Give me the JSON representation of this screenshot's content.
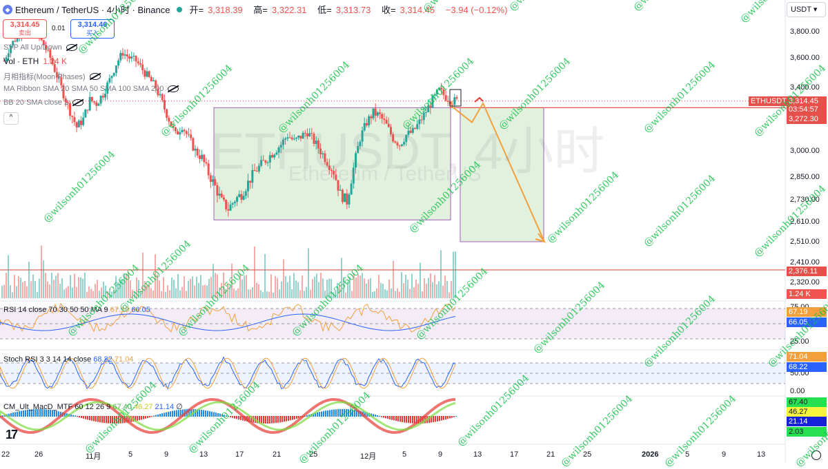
{
  "header": {
    "symbol": "Ethereum / TetherUS · 4小时 · Binance",
    "open_label": "开=",
    "open": "3,318.39",
    "high_label": "高=",
    "high": "3,322.31",
    "low_label": "低=",
    "low": "3,313.73",
    "close_label": "收=",
    "close": "3,314.45",
    "change": "−3.94 (−0.12%)"
  },
  "trade": {
    "sell_price": "3,314.45",
    "sell_label": "卖出",
    "spread": "0.01",
    "buy_price": "3,314.46",
    "buy_label": "买入"
  },
  "indicators": {
    "svp": "SVP All Up/Down",
    "vol": "Vol · ETH",
    "vol_value": "1.24 K",
    "moon": "月相指标(Moon Phases)",
    "ribbon": "MA Ribbon SMA 20 SMA 50 SMA 100 SMA 200",
    "bb": "BB 20 SMA close 2",
    "collapse": "^"
  },
  "currency": "USDT",
  "price_axis": [
    "3,800.00",
    "3,600.00",
    "3,400.00",
    "3,000.00",
    "2,850.00",
    "2,730.00",
    "2,610.00",
    "2,510.00",
    "2,410.00",
    "2,320.00"
  ],
  "tags": {
    "symbol_tag": "ETHUSDT",
    "last_price": "3,314.45",
    "countdown": "03:54:57",
    "level_upper": "3,272.30",
    "level_lower": "2,376.11",
    "vol_tag": "1.24 K"
  },
  "rsi": {
    "legend": "RSI 14 close 70 30 50 50 MA 9",
    "value": "67.19",
    "ma_value": "66.05",
    "axis": [
      "75.00",
      "25.00"
    ]
  },
  "stoch": {
    "legend": "Stoch RSI 3 3 14 14 close",
    "k": "68.22",
    "d": "71.04",
    "axis": [
      "50.00",
      "0.00"
    ]
  },
  "macd": {
    "legend": "CM_Ult_MacD_MTF 60 12 26 9",
    "v1": "67.40",
    "v2": "46.27",
    "v3": "21.14",
    "v4": "2.03",
    "empty": "∅"
  },
  "x_axis": [
    "22",
    "26",
    "11月",
    "5",
    "9",
    "13",
    "17",
    "21",
    "25",
    "12月",
    "5",
    "9",
    "13",
    "17",
    "21",
    "25",
    "2026",
    "5",
    "9",
    "13"
  ],
  "watermark": {
    "handle": "@wilsonh01256004",
    "big_line1": "ETHUSDT, 4小时",
    "big_line2": "Ethereum / TetherUS"
  },
  "colors": {
    "up": "#26a69a",
    "down": "#ef5350",
    "box": "#9c5fb5",
    "box_fill": "#d8ecd3",
    "arrow": "#f2a03d",
    "level": "#e5514a"
  },
  "chart_data": {
    "type": "candlestick",
    "title": "Ethereum / TetherUS · 4小时 · Binance",
    "price_path": [
      3580,
      3700,
      3760,
      3860,
      3820,
      3780,
      3700,
      3600,
      3480,
      3360,
      3250,
      3150,
      3200,
      3320,
      3300,
      3360,
      3450,
      3560,
      3640,
      3600,
      3580,
      3520,
      3460,
      3400,
      3300,
      3200,
      3100,
      3160,
      3080,
      3000,
      2960,
      2870,
      2800,
      2720,
      2680,
      2730,
      2760,
      2820,
      2880,
      2920,
      2960,
      3000,
      3040,
      3100,
      3060,
      3090,
      3120,
      3060,
      3000,
      2940,
      2880,
      2760,
      2720,
      2900,
      3080,
      3180,
      3240,
      3220,
      3160,
      3080,
      3040,
      3100,
      3120,
      3180,
      3250,
      3320,
      3380,
      3340,
      3314
    ],
    "projection": {
      "from": 3314.45,
      "waypoints": [
        3280,
        3180,
        3300,
        2510
      ]
    },
    "rectangles": [
      {
        "top": 3272.3,
        "bottom": 2620
      },
      {
        "top": 3272.3,
        "bottom": 2510
      }
    ],
    "levels": [
      3272.3,
      2376.11
    ],
    "last_price": 3314.45
  }
}
